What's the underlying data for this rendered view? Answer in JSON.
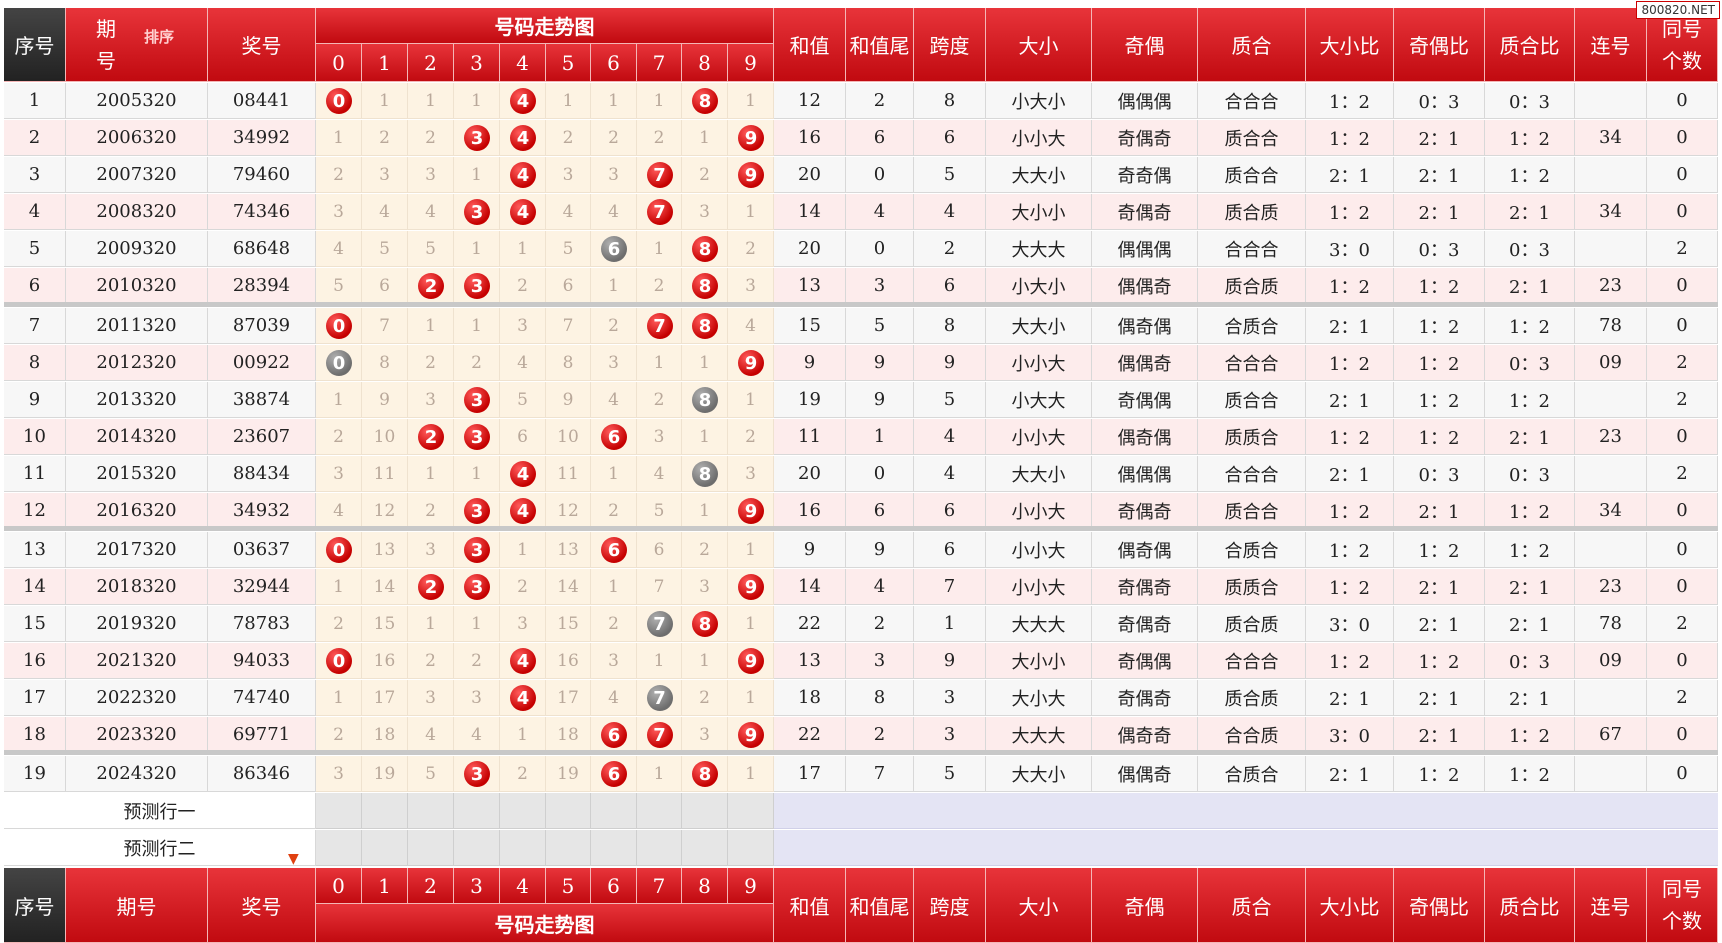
{
  "watermark": "800820.NET",
  "header": {
    "serial": "序号",
    "period_top": "期",
    "period_bottom": "号",
    "period_bottom_full": "期号",
    "sort_label": "排序",
    "prize": "奖号",
    "trend_title": "号码走势图",
    "digits": [
      "0",
      "1",
      "2",
      "3",
      "4",
      "5",
      "6",
      "7",
      "8",
      "9"
    ],
    "sum": "和值",
    "sum_tail": "和值尾",
    "span": "跨度",
    "size": "大小",
    "parity": "奇偶",
    "prime": "质合",
    "size_ratio": "大小比",
    "parity_ratio": "奇偶比",
    "prime_ratio": "质合比",
    "consec": "连号",
    "same_top": "同号",
    "same_bottom": "个数"
  },
  "predict_rows": [
    "预测行一",
    "预测行二"
  ],
  "colors": {
    "header_red": "#d0161c",
    "ball_red": "#d40000",
    "ball_gray": "#808080",
    "odd_row": "#f7f7f7",
    "even_row": "#fdecec",
    "trend_bg": "#fdf3e3"
  },
  "rows": [
    {
      "no": "1",
      "period": "2005320",
      "prize": "08441",
      "miss": [
        "0",
        "1",
        "1",
        "1",
        "4",
        "1",
        "1",
        "1",
        "8",
        "1"
      ],
      "sum": "12",
      "tail": "2",
      "span": "8",
      "size": "小大小",
      "parity": "偶偶偶",
      "prime": "合合合",
      "sr": "1：2",
      "pr": "0：3",
      "qr": "0：3",
      "consec": "",
      "same": "0"
    },
    {
      "no": "2",
      "period": "2006320",
      "prize": "34992",
      "miss": [
        "1",
        "2",
        "2",
        "3",
        "4",
        "2",
        "2",
        "2",
        "1",
        "9"
      ],
      "sum": "16",
      "tail": "6",
      "span": "6",
      "size": "小小大",
      "parity": "奇偶奇",
      "prime": "质合合",
      "sr": "1：2",
      "pr": "2：1",
      "qr": "1：2",
      "consec": "34",
      "same": "0"
    },
    {
      "no": "3",
      "period": "2007320",
      "prize": "79460",
      "miss": [
        "2",
        "3",
        "3",
        "1",
        "4",
        "3",
        "3",
        "7",
        "2",
        "9"
      ],
      "sum": "20",
      "tail": "0",
      "span": "5",
      "size": "大大小",
      "parity": "奇奇偶",
      "prime": "质合合",
      "sr": "2：1",
      "pr": "2：1",
      "qr": "1：2",
      "consec": "",
      "same": "0"
    },
    {
      "no": "4",
      "period": "2008320",
      "prize": "74346",
      "miss": [
        "3",
        "4",
        "4",
        "3",
        "4",
        "4",
        "4",
        "7",
        "3",
        "1"
      ],
      "sum": "14",
      "tail": "4",
      "span": "4",
      "size": "大小小",
      "parity": "奇偶奇",
      "prime": "质合质",
      "sr": "1：2",
      "pr": "2：1",
      "qr": "2：1",
      "consec": "34",
      "same": "0"
    },
    {
      "no": "5",
      "period": "2009320",
      "prize": "68648",
      "miss": [
        "4",
        "5",
        "5",
        "1",
        "1",
        "5",
        "6",
        "1",
        "8",
        "2"
      ],
      "sum": "20",
      "tail": "0",
      "span": "2",
      "size": "大大大",
      "parity": "偶偶偶",
      "prime": "合合合",
      "sr": "3：0",
      "pr": "0：3",
      "qr": "0：3",
      "consec": "",
      "same": "2"
    },
    {
      "no": "6",
      "period": "2010320",
      "prize": "28394",
      "miss": [
        "5",
        "6",
        "2",
        "3",
        "2",
        "6",
        "1",
        "2",
        "8",
        "3"
      ],
      "sum": "13",
      "tail": "3",
      "span": "6",
      "size": "小大小",
      "parity": "偶偶奇",
      "prime": "质合质",
      "sr": "1：2",
      "pr": "1：2",
      "qr": "2：1",
      "consec": "23",
      "same": "0"
    },
    {
      "no": "7",
      "period": "2011320",
      "prize": "87039",
      "miss": [
        "0",
        "7",
        "1",
        "1",
        "3",
        "7",
        "2",
        "7",
        "8",
        "4"
      ],
      "sum": "15",
      "tail": "5",
      "span": "8",
      "size": "大大小",
      "parity": "偶奇偶",
      "prime": "合质合",
      "sr": "2：1",
      "pr": "1：2",
      "qr": "1：2",
      "consec": "78",
      "same": "0"
    },
    {
      "no": "8",
      "period": "2012320",
      "prize": "00922",
      "miss": [
        "0",
        "8",
        "2",
        "2",
        "4",
        "8",
        "3",
        "1",
        "1",
        "9"
      ],
      "sum": "9",
      "tail": "9",
      "span": "9",
      "size": "小小大",
      "parity": "偶偶奇",
      "prime": "合合合",
      "sr": "1：2",
      "pr": "1：2",
      "qr": "0：3",
      "consec": "09",
      "same": "2"
    },
    {
      "no": "9",
      "period": "2013320",
      "prize": "38874",
      "miss": [
        "1",
        "9",
        "3",
        "3",
        "5",
        "9",
        "4",
        "2",
        "8",
        "1"
      ],
      "sum": "19",
      "tail": "9",
      "span": "5",
      "size": "小大大",
      "parity": "奇偶偶",
      "prime": "质合合",
      "sr": "2：1",
      "pr": "1：2",
      "qr": "1：2",
      "consec": "",
      "same": "2"
    },
    {
      "no": "10",
      "period": "2014320",
      "prize": "23607",
      "miss": [
        "2",
        "10",
        "2",
        "3",
        "6",
        "10",
        "6",
        "3",
        "1",
        "2"
      ],
      "sum": "11",
      "tail": "1",
      "span": "4",
      "size": "小小大",
      "parity": "偶奇偶",
      "prime": "质质合",
      "sr": "1：2",
      "pr": "1：2",
      "qr": "2：1",
      "consec": "23",
      "same": "0"
    },
    {
      "no": "11",
      "period": "2015320",
      "prize": "88434",
      "miss": [
        "3",
        "11",
        "1",
        "1",
        "4",
        "11",
        "1",
        "4",
        "8",
        "3"
      ],
      "sum": "20",
      "tail": "0",
      "span": "4",
      "size": "大大小",
      "parity": "偶偶偶",
      "prime": "合合合",
      "sr": "2：1",
      "pr": "0：3",
      "qr": "0：3",
      "consec": "",
      "same": "2"
    },
    {
      "no": "12",
      "period": "2016320",
      "prize": "34932",
      "miss": [
        "4",
        "12",
        "2",
        "3",
        "4",
        "12",
        "2",
        "5",
        "1",
        "9"
      ],
      "sum": "16",
      "tail": "6",
      "span": "6",
      "size": "小小大",
      "parity": "奇偶奇",
      "prime": "质合合",
      "sr": "1：2",
      "pr": "2：1",
      "qr": "1：2",
      "consec": "34",
      "same": "0"
    },
    {
      "no": "13",
      "period": "2017320",
      "prize": "03637",
      "miss": [
        "0",
        "13",
        "3",
        "3",
        "1",
        "13",
        "6",
        "6",
        "2",
        "1"
      ],
      "sum": "9",
      "tail": "9",
      "span": "6",
      "size": "小小大",
      "parity": "偶奇偶",
      "prime": "合质合",
      "sr": "1：2",
      "pr": "1：2",
      "qr": "1：2",
      "consec": "",
      "same": "0"
    },
    {
      "no": "14",
      "period": "2018320",
      "prize": "32944",
      "miss": [
        "1",
        "14",
        "2",
        "3",
        "2",
        "14",
        "1",
        "7",
        "3",
        "9"
      ],
      "sum": "14",
      "tail": "4",
      "span": "7",
      "size": "小小大",
      "parity": "奇偶奇",
      "prime": "质质合",
      "sr": "1：2",
      "pr": "2：1",
      "qr": "2：1",
      "consec": "23",
      "same": "0"
    },
    {
      "no": "15",
      "period": "2019320",
      "prize": "78783",
      "miss": [
        "2",
        "15",
        "1",
        "1",
        "3",
        "15",
        "2",
        "7",
        "8",
        "1"
      ],
      "sum": "22",
      "tail": "2",
      "span": "1",
      "size": "大大大",
      "parity": "奇偶奇",
      "prime": "质合质",
      "sr": "3：0",
      "pr": "2：1",
      "qr": "2：1",
      "consec": "78",
      "same": "2"
    },
    {
      "no": "16",
      "period": "2021320",
      "prize": "94033",
      "miss": [
        "0",
        "16",
        "2",
        "2",
        "4",
        "16",
        "3",
        "1",
        "1",
        "9"
      ],
      "sum": "13",
      "tail": "3",
      "span": "9",
      "size": "大小小",
      "parity": "奇偶偶",
      "prime": "合合合",
      "sr": "1：2",
      "pr": "1：2",
      "qr": "0：3",
      "consec": "09",
      "same": "0"
    },
    {
      "no": "17",
      "period": "2022320",
      "prize": "74740",
      "miss": [
        "1",
        "17",
        "3",
        "3",
        "4",
        "17",
        "4",
        "7",
        "2",
        "1"
      ],
      "sum": "18",
      "tail": "8",
      "span": "3",
      "size": "大小大",
      "parity": "奇偶奇",
      "prime": "质合质",
      "sr": "2：1",
      "pr": "2：1",
      "qr": "2：1",
      "consec": "",
      "same": "2"
    },
    {
      "no": "18",
      "period": "2023320",
      "prize": "69771",
      "miss": [
        "2",
        "18",
        "4",
        "4",
        "1",
        "18",
        "6",
        "7",
        "3",
        "9"
      ],
      "sum": "22",
      "tail": "2",
      "span": "3",
      "size": "大大大",
      "parity": "偶奇奇",
      "prime": "合合质",
      "sr": "3：0",
      "pr": "2：1",
      "qr": "1：2",
      "consec": "67",
      "same": "0"
    },
    {
      "no": "19",
      "period": "2024320",
      "prize": "86346",
      "miss": [
        "3",
        "19",
        "5",
        "3",
        "2",
        "19",
        "6",
        "1",
        "8",
        "1"
      ],
      "sum": "17",
      "tail": "7",
      "span": "5",
      "size": "大大小",
      "parity": "偶偶奇",
      "prime": "合质合",
      "sr": "2：1",
      "pr": "1：2",
      "qr": "1：2",
      "consec": "",
      "same": "0"
    }
  ],
  "balls": [
    [
      [
        0,
        "red"
      ],
      [
        4,
        "red"
      ],
      [
        8,
        "red"
      ]
    ],
    [
      [
        3,
        "red"
      ],
      [
        4,
        "red"
      ],
      [
        9,
        "red"
      ]
    ],
    [
      [
        4,
        "red"
      ],
      [
        7,
        "red"
      ],
      [
        9,
        "red"
      ]
    ],
    [
      [
        3,
        "red"
      ],
      [
        4,
        "red"
      ],
      [
        7,
        "red"
      ]
    ],
    [
      [
        6,
        "gray"
      ],
      [
        8,
        "red"
      ]
    ],
    [
      [
        2,
        "red"
      ],
      [
        3,
        "red"
      ],
      [
        8,
        "red"
      ]
    ],
    [
      [
        0,
        "red"
      ],
      [
        7,
        "red"
      ],
      [
        8,
        "red"
      ]
    ],
    [
      [
        0,
        "gray"
      ],
      [
        9,
        "red"
      ]
    ],
    [
      [
        3,
        "red"
      ],
      [
        8,
        "gray"
      ]
    ],
    [
      [
        2,
        "red"
      ],
      [
        3,
        "red"
      ],
      [
        6,
        "red"
      ]
    ],
    [
      [
        4,
        "red"
      ],
      [
        8,
        "gray"
      ]
    ],
    [
      [
        3,
        "red"
      ],
      [
        4,
        "red"
      ],
      [
        9,
        "red"
      ]
    ],
    [
      [
        0,
        "red"
      ],
      [
        3,
        "red"
      ],
      [
        6,
        "red"
      ]
    ],
    [
      [
        2,
        "red"
      ],
      [
        3,
        "red"
      ],
      [
        9,
        "red"
      ]
    ],
    [
      [
        7,
        "gray"
      ],
      [
        8,
        "red"
      ]
    ],
    [
      [
        0,
        "red"
      ],
      [
        4,
        "red"
      ],
      [
        9,
        "red"
      ]
    ],
    [
      [
        4,
        "red"
      ],
      [
        7,
        "gray"
      ]
    ],
    [
      [
        6,
        "red"
      ],
      [
        7,
        "red"
      ],
      [
        9,
        "red"
      ]
    ],
    [
      [
        3,
        "red"
      ],
      [
        6,
        "red"
      ],
      [
        8,
        "red"
      ]
    ]
  ]
}
